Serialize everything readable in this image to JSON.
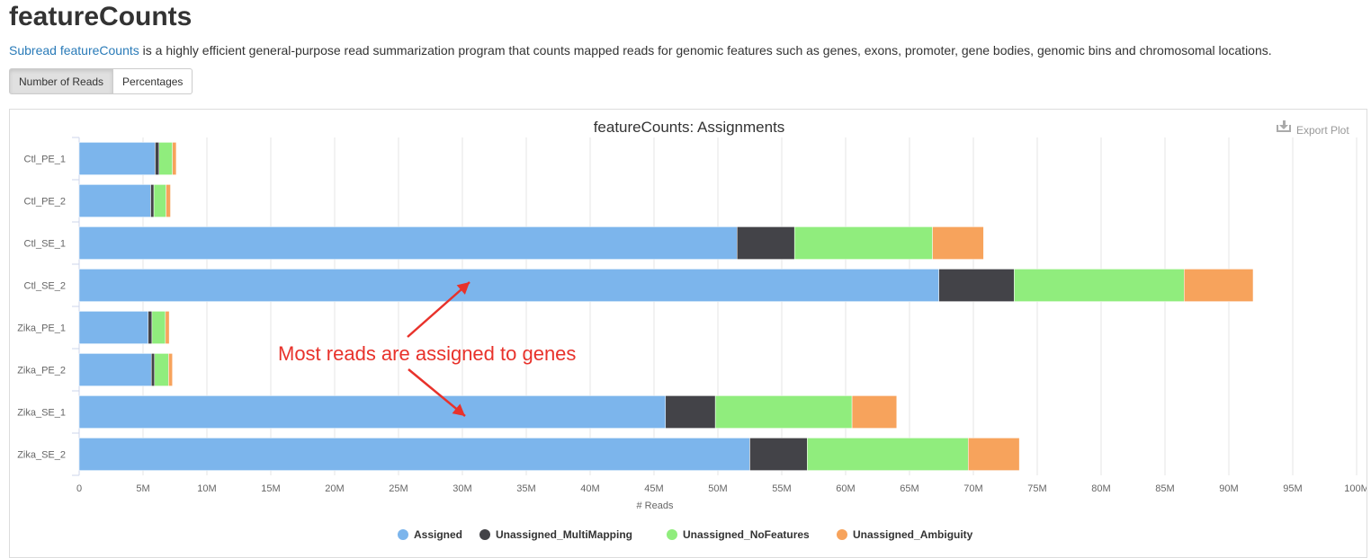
{
  "header": {
    "title": "featureCounts",
    "intro_link": "Subread featureCounts",
    "intro_text": " is a highly efficient general-purpose read summarization program that counts mapped reads for genomic features such as genes, exons, promoter, gene bodies, genomic bins and chromosomal locations."
  },
  "toggle": {
    "reads_label": "Number of Reads",
    "percent_label": "Percentages"
  },
  "export_label": "Export Plot",
  "annotation": "Most reads are assigned to genes",
  "colors": {
    "assigned": "#7cb5ec",
    "multimapping": "#434348",
    "nofeatures": "#90ed7d",
    "ambiguity": "#f7a35c",
    "annotation": "#e8322b"
  },
  "chart_data": {
    "type": "bar",
    "orientation": "horizontal",
    "stacked": true,
    "title": "featureCounts: Assignments",
    "xlabel": "# Reads",
    "ylabel": "",
    "xlim": [
      0,
      100000000
    ],
    "xticks": [
      0,
      5000000,
      10000000,
      15000000,
      20000000,
      25000000,
      30000000,
      35000000,
      40000000,
      45000000,
      50000000,
      55000000,
      60000000,
      65000000,
      70000000,
      75000000,
      80000000,
      85000000,
      90000000,
      95000000,
      100000000
    ],
    "xtick_labels": [
      "0",
      "5M",
      "10M",
      "15M",
      "20M",
      "25M",
      "30M",
      "35M",
      "40M",
      "45M",
      "50M",
      "55M",
      "60M",
      "65M",
      "70M",
      "75M",
      "80M",
      "85M",
      "90M",
      "95M",
      "100M"
    ],
    "grid": true,
    "legend_position": "bottom",
    "categories": [
      "Ctl_PE_1",
      "Ctl_PE_2",
      "Ctl_SE_1",
      "Ctl_SE_2",
      "Zika_PE_1",
      "Zika_PE_2",
      "Zika_SE_1",
      "Zika_SE_2"
    ],
    "series": [
      {
        "name": "Assigned",
        "values": [
          5950000,
          5600000,
          51500000,
          67300000,
          5400000,
          5650000,
          45900000,
          52500000
        ]
      },
      {
        "name": "Unassigned_MultiMapping",
        "values": [
          300000,
          250000,
          4500000,
          5900000,
          300000,
          250000,
          3900000,
          4500000
        ]
      },
      {
        "name": "Unassigned_NoFeatures",
        "values": [
          1050000,
          950000,
          10800000,
          13300000,
          1050000,
          1100000,
          10700000,
          12600000
        ]
      },
      {
        "name": "Unassigned_Ambiguity",
        "values": [
          300000,
          350000,
          4000000,
          5400000,
          300000,
          300000,
          3500000,
          4000000
        ]
      }
    ]
  }
}
